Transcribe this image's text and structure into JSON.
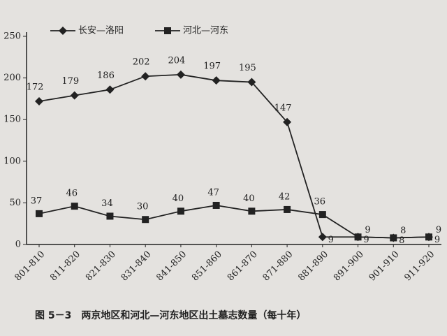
{
  "chart_data": {
    "type": "line",
    "caption": "图 5－3　两京地区和河北—河东地区出土墓志数量（每十年）",
    "categories": [
      "801-810",
      "811-820",
      "821-830",
      "831-840",
      "841-850",
      "851-860",
      "861-870",
      "871-880",
      "881-890",
      "891-900",
      "901-910",
      "911-920"
    ],
    "series": [
      {
        "name": "长安—洛阳",
        "color": "#222222",
        "marker": "diamond",
        "values": [
          172,
          179,
          186,
          202,
          204,
          197,
          195,
          147,
          9,
          9,
          8,
          9
        ]
      },
      {
        "name": "河北—河东",
        "color": "#222222",
        "marker": "square",
        "values": [
          37,
          46,
          34,
          30,
          40,
          47,
          40,
          42,
          36,
          9,
          8,
          9
        ]
      }
    ],
    "ylim": [
      0,
      250
    ],
    "yticks": [
      0,
      50,
      100,
      150,
      200,
      250
    ]
  }
}
